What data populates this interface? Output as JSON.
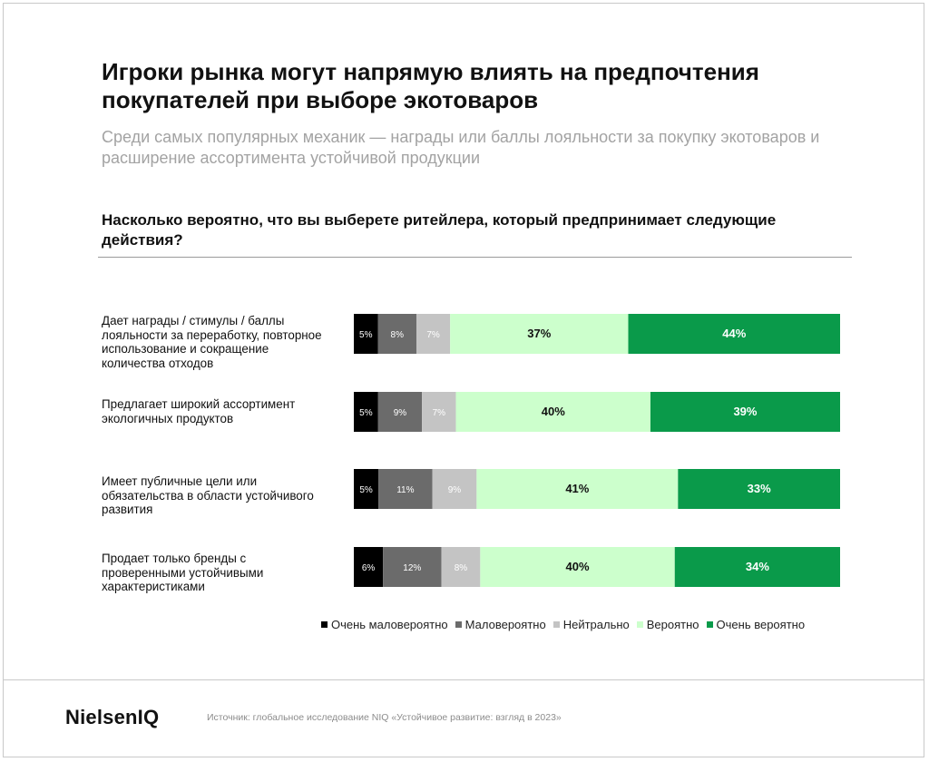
{
  "title": "Игроки рынка могут напрямую влиять на предпочтения покупателей при выборе экотоваров",
  "subtitle": "Среди самых популярных механик — награды или баллы лояльности за покупку экотоваров и расширение ассортимента устойчивой продукции",
  "question": "Насколько вероятно, что вы выберете ритейлера, который предпринимает следующие действия?",
  "chart_data": {
    "type": "bar",
    "orientation": "horizontal",
    "stacked": true,
    "percent_stacked": true,
    "title": "",
    "xlabel": "",
    "ylabel": "",
    "value_suffix": "%",
    "categories": [
      "Дает награды / стимулы / баллы лояльности за переработку, повторное использование и сокращение количества отходов",
      "Предлагает широкий ассортимент экологичных продуктов",
      "Имеет публичные цели или обязательства в области устойчивого развития",
      "Продает только бренды с проверенными устойчивыми характеристиками"
    ],
    "series": [
      {
        "name": "Очень маловероятно",
        "color": "#000000",
        "label_color": "#ffffff",
        "values": [
          5,
          5,
          5,
          6
        ]
      },
      {
        "name": "Маловероятно",
        "color": "#6b6b6b",
        "label_color": "#ffffff",
        "values": [
          8,
          9,
          11,
          12
        ]
      },
      {
        "name": "Нейтрально",
        "color": "#c4c4c4",
        "label_color": "#ffffff",
        "values": [
          7,
          7,
          9,
          8
        ]
      },
      {
        "name": "Вероятно",
        "color": "#ccffcc",
        "label_color": "#111111",
        "values": [
          37,
          40,
          41,
          40
        ]
      },
      {
        "name": "Очень вероятно",
        "color": "#0a9a4a",
        "label_color": "#ffffff",
        "values": [
          44,
          39,
          33,
          34
        ]
      }
    ],
    "legend_position": "bottom-right",
    "grid": false
  },
  "footer": {
    "logo": "NielsenIQ",
    "source": "Источник: глобальное исследование NIQ «Устойчивое развитие: взгляд в 2023»"
  }
}
